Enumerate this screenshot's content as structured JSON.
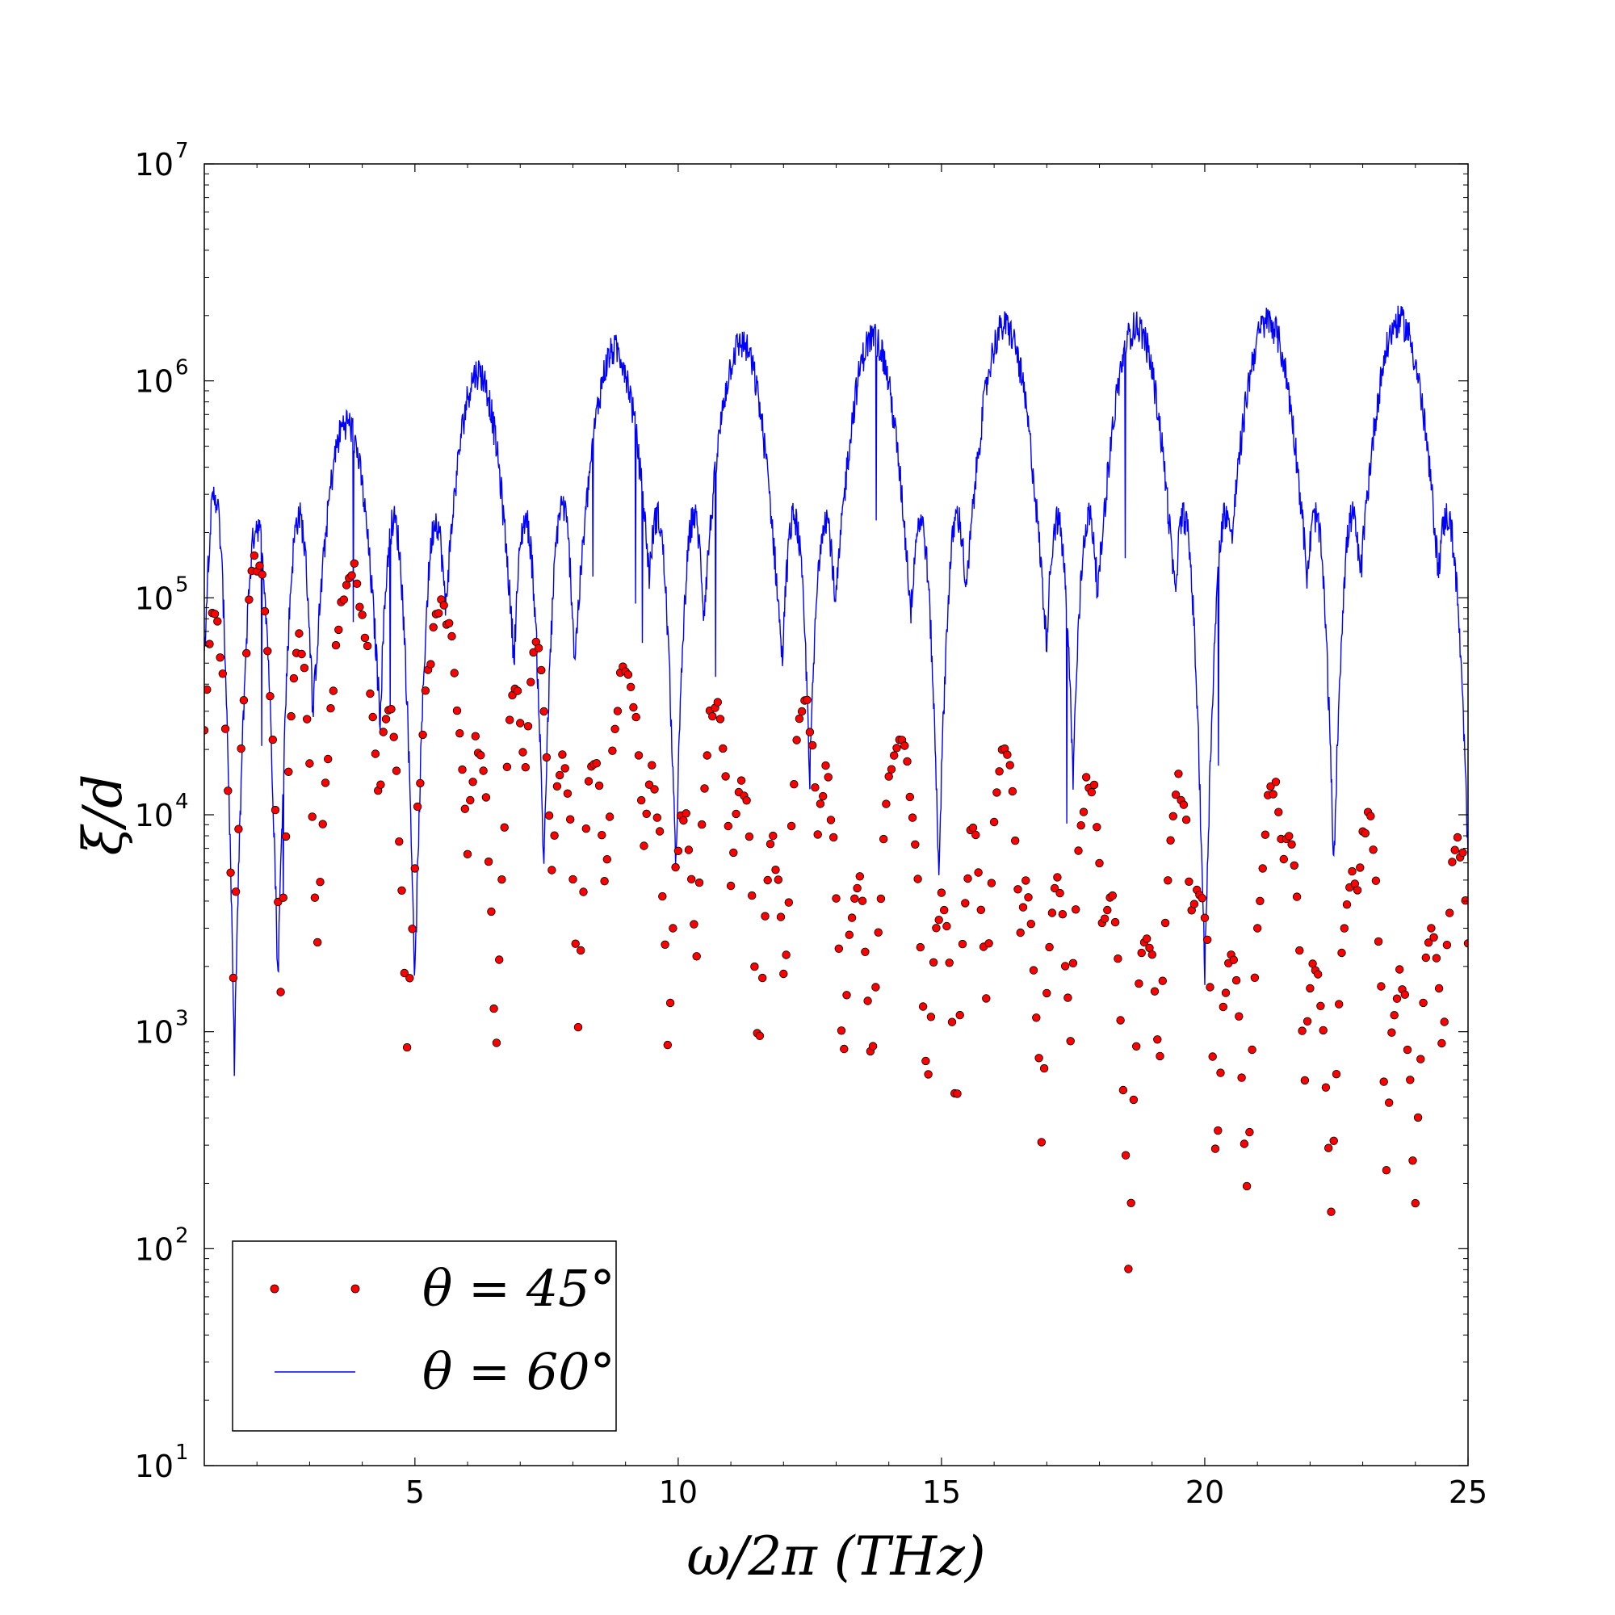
{
  "chart_data": {
    "type": "scatter+line",
    "title": "",
    "xlabel": "ω/2π (THz)",
    "ylabel": "ξ/d",
    "xscale": "linear",
    "yscale": "log",
    "xlim": [
      1,
      25
    ],
    "ylim": [
      10,
      10000000
    ],
    "x_ticks": [
      5,
      10,
      15,
      20,
      25
    ],
    "x_tick_labels": [
      "5",
      "10",
      "15",
      "20",
      "25"
    ],
    "y_ticks": [
      10,
      100,
      1000,
      10000,
      100000,
      1000000,
      10000000
    ],
    "y_tick_bases": [
      "10",
      "10",
      "10",
      "10",
      "10",
      "10",
      "10"
    ],
    "y_tick_exps": [
      "1",
      "2",
      "3",
      "4",
      "5",
      "6",
      "7"
    ],
    "grid": false,
    "legend_position": "lower-left",
    "series": [
      {
        "name": "θ = 45°",
        "style": "markers",
        "color": "#ff0000",
        "edge_color": "#000000",
        "dx": 0.05,
        "peaks": [
          {
            "x": 1.2,
            "v": 80000,
            "hw": 0.3
          },
          {
            "x": 2.0,
            "v": 150000,
            "hw": 0.35
          },
          {
            "x": 2.8,
            "v": 60000,
            "hw": 0.3
          },
          {
            "x": 3.8,
            "v": 130000,
            "hw": 0.55
          },
          {
            "x": 4.5,
            "v": 30000,
            "hw": 0.3
          },
          {
            "x": 5.5,
            "v": 90000,
            "hw": 0.5
          },
          {
            "x": 6.2,
            "v": 22000,
            "hw": 0.3
          },
          {
            "x": 6.9,
            "v": 35000,
            "hw": 0.3
          },
          {
            "x": 7.3,
            "v": 60000,
            "hw": 0.3
          },
          {
            "x": 7.8,
            "v": 18000,
            "hw": 0.3
          },
          {
            "x": 8.4,
            "v": 17000,
            "hw": 0.3
          },
          {
            "x": 9.0,
            "v": 52000,
            "hw": 0.4
          },
          {
            "x": 9.5,
            "v": 15000,
            "hw": 0.3
          },
          {
            "x": 10.1,
            "v": 10000,
            "hw": 0.3
          },
          {
            "x": 10.7,
            "v": 35000,
            "hw": 0.35
          },
          {
            "x": 11.2,
            "v": 14000,
            "hw": 0.3
          },
          {
            "x": 11.8,
            "v": 7000,
            "hw": 0.3
          },
          {
            "x": 12.4,
            "v": 32000,
            "hw": 0.35
          },
          {
            "x": 12.8,
            "v": 15000,
            "hw": 0.3
          },
          {
            "x": 13.4,
            "v": 5000,
            "hw": 0.3
          },
          {
            "x": 14.2,
            "v": 24000,
            "hw": 0.45
          },
          {
            "x": 15.0,
            "v": 4000,
            "hw": 0.3
          },
          {
            "x": 15.6,
            "v": 8000,
            "hw": 0.3
          },
          {
            "x": 16.2,
            "v": 20000,
            "hw": 0.35
          },
          {
            "x": 16.6,
            "v": 4500,
            "hw": 0.3
          },
          {
            "x": 17.2,
            "v": 4500,
            "hw": 0.3
          },
          {
            "x": 17.8,
            "v": 15000,
            "hw": 0.35
          },
          {
            "x": 18.2,
            "v": 4000,
            "hw": 0.3
          },
          {
            "x": 18.9,
            "v": 3000,
            "hw": 0.3
          },
          {
            "x": 19.5,
            "v": 14000,
            "hw": 0.35
          },
          {
            "x": 19.9,
            "v": 5000,
            "hw": 0.3
          },
          {
            "x": 20.5,
            "v": 2400,
            "hw": 0.3
          },
          {
            "x": 21.3,
            "v": 13000,
            "hw": 0.4
          },
          {
            "x": 21.6,
            "v": 8000,
            "hw": 0.3
          },
          {
            "x": 22.1,
            "v": 2000,
            "hw": 0.3
          },
          {
            "x": 22.8,
            "v": 5000,
            "hw": 0.35
          },
          {
            "x": 23.1,
            "v": 10000,
            "hw": 0.3
          },
          {
            "x": 23.7,
            "v": 1800,
            "hw": 0.3
          },
          {
            "x": 24.3,
            "v": 2800,
            "hw": 0.3
          },
          {
            "x": 24.8,
            "v": 8000,
            "hw": 0.3
          }
        ],
        "y_floor": 15
      },
      {
        "name": "θ = 60°",
        "style": "line",
        "color": "#0000ff",
        "dx": 0.01,
        "peaks": [
          {
            "x": 1.2,
            "v": 300000,
            "hw": 0.25
          },
          {
            "x": 2.0,
            "v": 220000,
            "hw": 0.3
          },
          {
            "x": 2.8,
            "v": 240000,
            "hw": 0.3
          },
          {
            "x": 3.7,
            "v": 650000,
            "hw": 0.6
          },
          {
            "x": 4.6,
            "v": 230000,
            "hw": 0.3
          },
          {
            "x": 5.4,
            "v": 230000,
            "hw": 0.3
          },
          {
            "x": 6.2,
            "v": 1100000,
            "hw": 0.65
          },
          {
            "x": 7.1,
            "v": 230000,
            "hw": 0.3
          },
          {
            "x": 7.8,
            "v": 270000,
            "hw": 0.3
          },
          {
            "x": 8.8,
            "v": 1400000,
            "hw": 0.7
          },
          {
            "x": 9.6,
            "v": 240000,
            "hw": 0.3
          },
          {
            "x": 10.3,
            "v": 240000,
            "hw": 0.3
          },
          {
            "x": 11.2,
            "v": 1500000,
            "hw": 0.7
          },
          {
            "x": 12.2,
            "v": 240000,
            "hw": 0.3
          },
          {
            "x": 12.8,
            "v": 240000,
            "hw": 0.3
          },
          {
            "x": 13.7,
            "v": 1600000,
            "hw": 0.7
          },
          {
            "x": 14.6,
            "v": 230000,
            "hw": 0.3
          },
          {
            "x": 15.3,
            "v": 240000,
            "hw": 0.3
          },
          {
            "x": 16.2,
            "v": 1800000,
            "hw": 0.72
          },
          {
            "x": 17.2,
            "v": 230000,
            "hw": 0.3
          },
          {
            "x": 17.8,
            "v": 240000,
            "hw": 0.3
          },
          {
            "x": 18.7,
            "v": 1800000,
            "hw": 0.72
          },
          {
            "x": 19.6,
            "v": 240000,
            "hw": 0.3
          },
          {
            "x": 20.4,
            "v": 250000,
            "hw": 0.3
          },
          {
            "x": 21.2,
            "v": 1900000,
            "hw": 0.75
          },
          {
            "x": 22.1,
            "v": 240000,
            "hw": 0.3
          },
          {
            "x": 22.8,
            "v": 240000,
            "hw": 0.3
          },
          {
            "x": 23.7,
            "v": 1900000,
            "hw": 0.75
          },
          {
            "x": 24.6,
            "v": 240000,
            "hw": 0.35
          }
        ],
        "y_floor": 15
      }
    ]
  },
  "legend": {
    "items": [
      {
        "label": "θ = 45°",
        "marker": "dot"
      },
      {
        "label": "θ = 60°",
        "marker": "line"
      }
    ]
  }
}
